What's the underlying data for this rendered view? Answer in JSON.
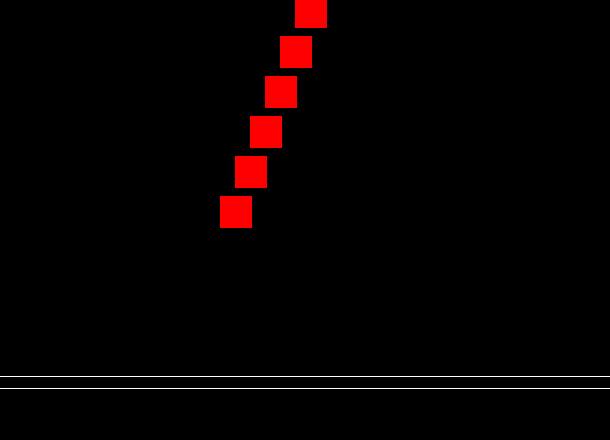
{
  "scene": {
    "background_color": "#000000",
    "block_color": "#ff0000",
    "line_color": "#ffffff",
    "block_count": 6,
    "line_count": 2
  }
}
